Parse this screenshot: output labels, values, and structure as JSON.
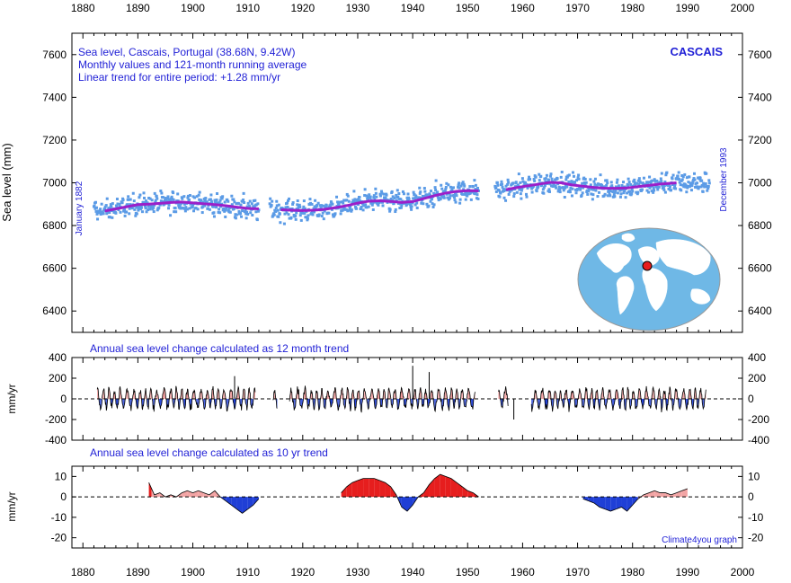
{
  "chart_data": [
    {
      "type": "scatter",
      "panel": "sea-level",
      "text_lines": [
        "Sea level, Cascais, Portugal (38.68N, 9.42W)",
        "Monthly values and 121-month running average",
        "Linear trend for entire period: +1.28 mm/yr"
      ],
      "station_label": "CASCAIS",
      "ylabel": "Sea level (mm)",
      "start_label": "January 1882",
      "end_label": "December 1993",
      "xlim": [
        1878,
        2000
      ],
      "ylim": [
        6300,
        7700
      ],
      "x_ticks": [
        1880,
        1890,
        1900,
        1910,
        1920,
        1930,
        1940,
        1950,
        1960,
        1970,
        1980,
        1990,
        2000
      ],
      "y_ticks": [
        6400,
        6600,
        6800,
        7000,
        7200,
        7400,
        7600
      ],
      "data_periods": [
        [
          1882.0,
          1912.0
        ],
        [
          1914.0,
          1952.0
        ],
        [
          1955.0,
          1994.0
        ]
      ],
      "running_average": {
        "color": "#9b1fc9",
        "x": [
          1884,
          1886,
          1888,
          1890,
          1892,
          1894,
          1896,
          1898,
          1900,
          1902,
          1904,
          1906,
          1908,
          1910,
          1912,
          1914,
          1916,
          1918,
          1920,
          1922,
          1924,
          1926,
          1928,
          1930,
          1932,
          1934,
          1936,
          1938,
          1940,
          1942,
          1944,
          1946,
          1948,
          1950,
          1952,
          1955,
          1957,
          1959,
          1961,
          1963,
          1965,
          1967,
          1969,
          1971,
          1973,
          1975,
          1977,
          1979,
          1981,
          1983,
          1985,
          1987,
          1988
        ],
        "y": [
          6868,
          6878,
          6888,
          6898,
          6900,
          6904,
          6908,
          6910,
          6906,
          6902,
          6898,
          6893,
          6886,
          6880,
          6878,
          null,
          6874,
          6872,
          6870,
          6872,
          6876,
          6884,
          6893,
          6905,
          6914,
          6916,
          6913,
          6908,
          6912,
          6926,
          6940,
          6952,
          6960,
          6963,
          6962,
          null,
          6968,
          6978,
          6986,
          6994,
          7002,
          7000,
          6990,
          6984,
          6978,
          6975,
          6974,
          6976,
          6982,
          6988,
          6994,
          6998,
          7000
        ]
      },
      "monthly_points_color": "#5b9be6",
      "map_inset": {
        "marker_color": "#e81d1d",
        "ocean_color": "#6fb8e6",
        "land_color": "#ffffff"
      }
    },
    {
      "type": "area",
      "panel": "annual-change-12-month",
      "title": "Annual sea level change calculated as 12 month trend",
      "ylabel": "mm/yr",
      "xlim": [
        1878,
        2000
      ],
      "ylim": [
        -400,
        400
      ],
      "y_ticks": [
        -400,
        -200,
        0,
        200,
        400
      ],
      "positive_color": "#f19a9a",
      "negative_color": "#1f3fd6",
      "segments": [
        [
          1882.6,
          1911.4
        ],
        [
          1914.6,
          1915.4
        ],
        [
          1917.6,
          1951.4
        ],
        [
          1955.6,
          1957.4
        ],
        [
          1961.6,
          1993.4
        ]
      ],
      "peaks_x": [
        1907.6,
        1940.0,
        1958.4,
        1943.0
      ],
      "peaks_y": [
        220,
        320,
        -200,
        260
      ]
    },
    {
      "type": "area",
      "panel": "annual-change-10-yr",
      "title": "Annual sea level change calculated as 10 yr trend",
      "ylabel": "mm/yr",
      "xlim": [
        1878,
        2000
      ],
      "ylim": [
        -25,
        15
      ],
      "y_ticks": [
        -20,
        -10,
        0,
        10
      ],
      "positive_color": "#e61e1e",
      "negative_color": "#1f3fd6",
      "x": [
        1892.0,
        1892.5,
        1893,
        1894,
        1895,
        1896,
        1897,
        1898,
        1899,
        1900,
        1901,
        1902,
        1903,
        1904,
        1905,
        1906,
        1907,
        1908,
        1909,
        1910,
        1911,
        1912,
        null,
        1927,
        1928,
        1929,
        1930,
        1931,
        1932,
        1933,
        1934,
        1935,
        1936,
        1937,
        1938,
        1939,
        1940,
        1941,
        1942,
        1943,
        1944,
        1945,
        1946,
        1947,
        1948,
        1949,
        1950,
        1951,
        1952,
        null,
        1971,
        1972,
        1973,
        1974,
        1975,
        1976,
        1977,
        1978,
        1979,
        1980,
        1981,
        1982,
        1983,
        1984,
        1985,
        1986,
        1987,
        1988,
        1989,
        1990
      ],
      "y": [
        7,
        4,
        1,
        2,
        0,
        1,
        0,
        2,
        3,
        2,
        3,
        2,
        1,
        3,
        0,
        -2,
        -4,
        -6,
        -8,
        -6,
        -4,
        -1,
        null,
        2,
        5,
        7,
        8,
        9,
        9,
        9,
        8,
        7,
        5,
        1,
        -5,
        -7,
        -4,
        0,
        2,
        6,
        9,
        11,
        10,
        9,
        7,
        5,
        3,
        2,
        0,
        null,
        -1,
        -2,
        -3,
        -5,
        -6,
        -7,
        -6,
        -5,
        -7,
        -4,
        -1,
        1,
        2,
        3,
        2,
        2,
        1,
        2,
        3,
        4
      ],
      "credit": "Climate4you graph"
    }
  ]
}
